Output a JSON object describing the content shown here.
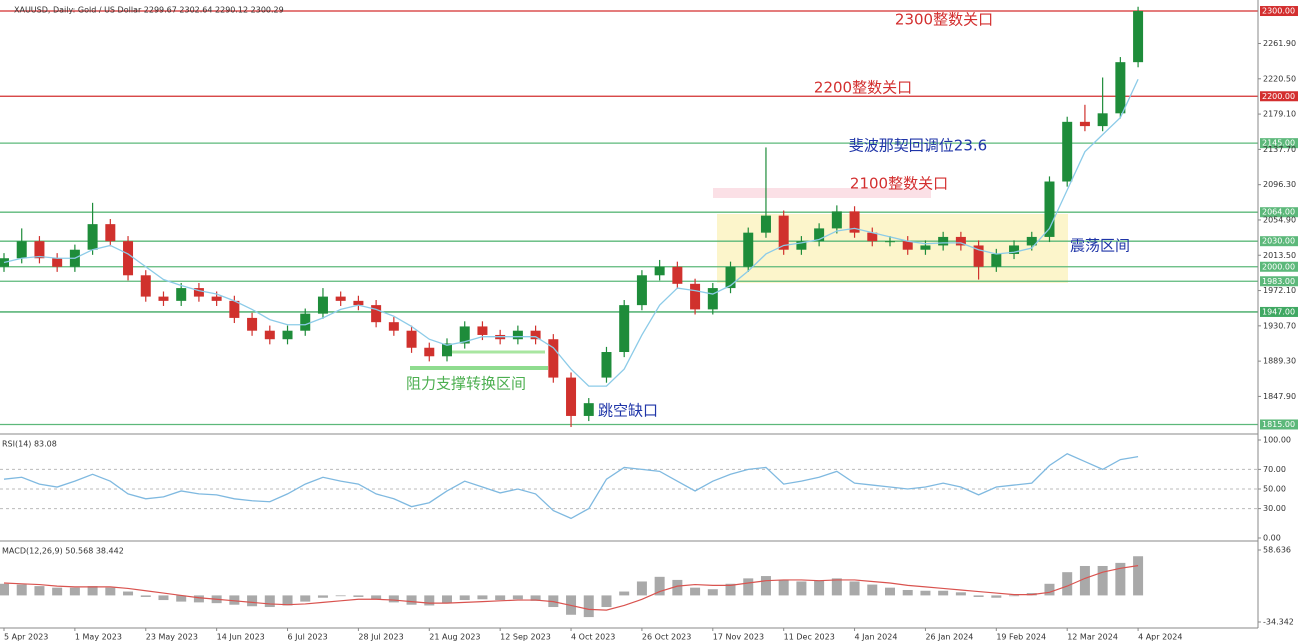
{
  "chart_data": [
    {
      "type": "candlestick",
      "title": "XAUUSD, Daily:  Gold / US Dollar  2299.67 2302.64 2290.12 2300.29",
      "categories": [
        "5 Apr 2023",
        null,
        null,
        null,
        "1 May 2023",
        null,
        null,
        null,
        "23 May 2023",
        null,
        null,
        null,
        "14 Jun 2023",
        null,
        null,
        null,
        "6 Jul 2023",
        null,
        null,
        null,
        "28 Jul 2023",
        null,
        null,
        null,
        "21 Aug 2023",
        null,
        null,
        null,
        "12 Sep 2023",
        null,
        null,
        null,
        "4 Oct 2023",
        null,
        null,
        null,
        "26 Oct 2023",
        null,
        null,
        null,
        "17 Nov 2023",
        null,
        null,
        null,
        "11 Dec 2023",
        null,
        null,
        null,
        "4 Jan 2024",
        null,
        null,
        null,
        "26 Jan 2024",
        null,
        null,
        null,
        "19 Feb 2024",
        null,
        null,
        null,
        "12 Mar 2024",
        null,
        null,
        null,
        "4 Apr 2024"
      ],
      "open": [
        2000,
        2010,
        2030,
        2010,
        2000,
        2020,
        2050,
        2030,
        1990,
        1965,
        1960,
        1975,
        1965,
        1960,
        1940,
        1925,
        1915,
        1925,
        1945,
        1965,
        1960,
        1955,
        1935,
        1925,
        1905,
        1895,
        1910,
        1930,
        1920,
        1915,
        1925,
        1915,
        1870,
        1825,
        1870,
        1900,
        1955,
        1990,
        2000,
        1980,
        1950,
        1975,
        2000,
        2040,
        2060,
        2020,
        2030,
        2045,
        2065,
        2040,
        2030,
        2030,
        2020,
        2025,
        2035,
        2025,
        2000,
        2015,
        2025,
        2035,
        2100,
        2170,
        2165,
        2180,
        2240
      ],
      "high": [
        2016,
        2045,
        2036,
        2016,
        2026,
        2075,
        2056,
        2036,
        1996,
        1971,
        1981,
        1981,
        1971,
        1966,
        1946,
        1931,
        1931,
        1951,
        1975,
        1971,
        1966,
        1961,
        1941,
        1931,
        1911,
        1916,
        1936,
        1936,
        1926,
        1931,
        1931,
        1921,
        1876,
        1846,
        1906,
        1961,
        1996,
        2008,
        2006,
        1986,
        1981,
        2006,
        2046,
        2140,
        2066,
        2036,
        2051,
        2072,
        2071,
        2046,
        2036,
        2036,
        2031,
        2041,
        2041,
        2031,
        2021,
        2031,
        2041,
        2106,
        2176,
        2190,
        2222,
        2246,
        2305
      ],
      "low": [
        1994,
        2004,
        2004,
        1994,
        1994,
        2014,
        2024,
        1984,
        1959,
        1954,
        1954,
        1959,
        1954,
        1934,
        1919,
        1909,
        1909,
        1919,
        1939,
        1954,
        1949,
        1929,
        1919,
        1899,
        1889,
        1889,
        1904,
        1914,
        1909,
        1909,
        1909,
        1864,
        1812,
        1819,
        1864,
        1894,
        1949,
        1984,
        1974,
        1944,
        1944,
        1969,
        1994,
        2034,
        2014,
        2014,
        2024,
        2039,
        2034,
        2024,
        2024,
        2014,
        2014,
        2019,
        2019,
        1985,
        1994,
        2009,
        2019,
        2029,
        2094,
        2159,
        2159,
        2174,
        2234
      ],
      "close": [
        2010,
        2030,
        2010,
        2000,
        2020,
        2050,
        2030,
        1990,
        1965,
        1960,
        1975,
        1965,
        1960,
        1940,
        1925,
        1915,
        1925,
        1945,
        1965,
        1960,
        1955,
        1935,
        1925,
        1905,
        1895,
        1910,
        1930,
        1920,
        1915,
        1925,
        1915,
        1870,
        1825,
        1840,
        1900,
        1955,
        1990,
        2000,
        1980,
        1950,
        1975,
        2000,
        2040,
        2060,
        2020,
        2030,
        2045,
        2065,
        2040,
        2030,
        2030,
        2020,
        2025,
        2035,
        2025,
        2000,
        2015,
        2025,
        2035,
        2100,
        2170,
        2165,
        2180,
        2240,
        2300
      ],
      "up_color": "#1e8c3a",
      "down_color": "#d0312d",
      "ma": {
        "color": "#8ccbe8",
        "values": [
          2005,
          2010,
          2012,
          2010,
          2010,
          2020,
          2025,
          2015,
          2000,
          1985,
          1978,
          1972,
          1968,
          1960,
          1950,
          1938,
          1932,
          1932,
          1940,
          1950,
          1955,
          1950,
          1942,
          1930,
          1915,
          1908,
          1912,
          1918,
          1918,
          1918,
          1918,
          1905,
          1880,
          1860,
          1860,
          1880,
          1920,
          1955,
          1975,
          1972,
          1968,
          1978,
          1995,
          2015,
          2025,
          2028,
          2032,
          2042,
          2045,
          2040,
          2035,
          2030,
          2027,
          2028,
          2028,
          2020,
          2015,
          2017,
          2022,
          2045,
          2090,
          2135,
          2155,
          2175,
          2220
        ]
      },
      "ylim": [
        1805,
        2309.4
      ],
      "yticks": [
        {
          "value": 2261.9,
          "label": "2261.90"
        },
        {
          "value": 2220.5,
          "label": "2220.50"
        },
        {
          "value": 2179.1,
          "label": "2179.10"
        },
        {
          "value": 2137.7,
          "label": "2137.70"
        },
        {
          "value": 2096.3,
          "label": "2096.30"
        },
        {
          "value": 2054.9,
          "label": "2054.90"
        },
        {
          "value": 2013.5,
          "label": "2013.50"
        },
        {
          "value": 1972.1,
          "label": "1972.10"
        },
        {
          "value": 1930.7,
          "label": "1930.70"
        },
        {
          "value": 1889.3,
          "label": "1889.30"
        },
        {
          "value": 1847.9,
          "label": "1847.90"
        }
      ],
      "grid": false,
      "levels": [
        {
          "value": 2300,
          "label": "2300.00",
          "color": "#d32f2f"
        },
        {
          "value": 2200,
          "label": "2200.00",
          "color": "#d32f2f"
        },
        {
          "value": 2145,
          "label": "2145.00",
          "color": "#5cb87a"
        },
        {
          "value": 2064,
          "label": "2064.00",
          "color": "#5cb87a"
        },
        {
          "value": 2030,
          "label": "2030.00",
          "color": "#5cb87a"
        },
        {
          "value": 2000,
          "label": "2000.00",
          "color": "#5cb87a"
        },
        {
          "value": 1983,
          "label": "1983.00",
          "color": "#5cb87a"
        },
        {
          "value": 1947,
          "label": "1947.00",
          "color": "#3fa862"
        },
        {
          "value": 1815,
          "label": "1815.00",
          "color": "#5cb87a"
        }
      ],
      "annotations": [
        "2300整数关口",
        "2200整数关口",
        "斐波那契回调位23.6",
        "2100整数关口",
        "震荡区间",
        "阻力支撑转换区间",
        "跳空缺口"
      ]
    },
    {
      "type": "line",
      "title": "RSI(14) 83.08",
      "color": "#7fb9e0",
      "values": [
        60,
        62,
        55,
        52,
        58,
        65,
        58,
        45,
        40,
        42,
        48,
        45,
        44,
        40,
        38,
        37,
        45,
        55,
        62,
        58,
        55,
        45,
        40,
        32,
        36,
        48,
        58,
        52,
        46,
        50,
        45,
        28,
        20,
        30,
        60,
        72,
        70,
        68,
        58,
        48,
        58,
        65,
        70,
        72,
        55,
        58,
        62,
        68,
        56,
        54,
        52,
        50,
        52,
        56,
        52,
        44,
        52,
        54,
        56,
        74,
        86,
        78,
        70,
        80,
        83.08
      ],
      "ylim": [
        0,
        100
      ],
      "yticks": [
        {
          "value": 100,
          "label": "100.00"
        },
        {
          "value": 70,
          "label": "70.00"
        },
        {
          "value": 50,
          "label": "50.00"
        },
        {
          "value": 30,
          "label": "30.00"
        },
        {
          "value": 0,
          "label": "0.00"
        }
      ]
    },
    {
      "type": "macd",
      "title": "MACD(12,26,9) 50.568 38.442",
      "histogram": {
        "color": "#a9a9a9",
        "values": [
          15,
          14,
          12,
          10,
          10,
          12,
          10,
          5,
          -2,
          -6,
          -8,
          -9,
          -10,
          -12,
          -14,
          -15,
          -13,
          -8,
          -3,
          -1,
          -2,
          -5,
          -9,
          -12,
          -13,
          -10,
          -6,
          -5,
          -6,
          -5,
          -7,
          -15,
          -25,
          -28,
          -15,
          5,
          18,
          24,
          20,
          10,
          8,
          15,
          22,
          25,
          20,
          18,
          19,
          22,
          18,
          14,
          10,
          7,
          6,
          6,
          4,
          -2,
          -3,
          -1,
          3,
          15,
          30,
          38,
          38,
          42,
          50.568
        ]
      },
      "signal": {
        "color": "#d9534f",
        "values": [
          16,
          15,
          14,
          12,
          11,
          11,
          11,
          9,
          6,
          3,
          0,
          -3,
          -5,
          -7,
          -9,
          -11,
          -12,
          -11,
          -9,
          -7,
          -5,
          -5,
          -6,
          -8,
          -10,
          -10,
          -9,
          -8,
          -7,
          -6,
          -6,
          -8,
          -13,
          -18,
          -19,
          -13,
          -5,
          5,
          12,
          14,
          13,
          13,
          16,
          19,
          20,
          20,
          19,
          20,
          20,
          18,
          16,
          13,
          11,
          9,
          7,
          5,
          3,
          1,
          1,
          4,
          12,
          22,
          30,
          35,
          38.442
        ]
      },
      "ylim": [
        -40.8,
        65.1
      ],
      "yticks": [
        58.636,
        -34.342
      ]
    }
  ]
}
